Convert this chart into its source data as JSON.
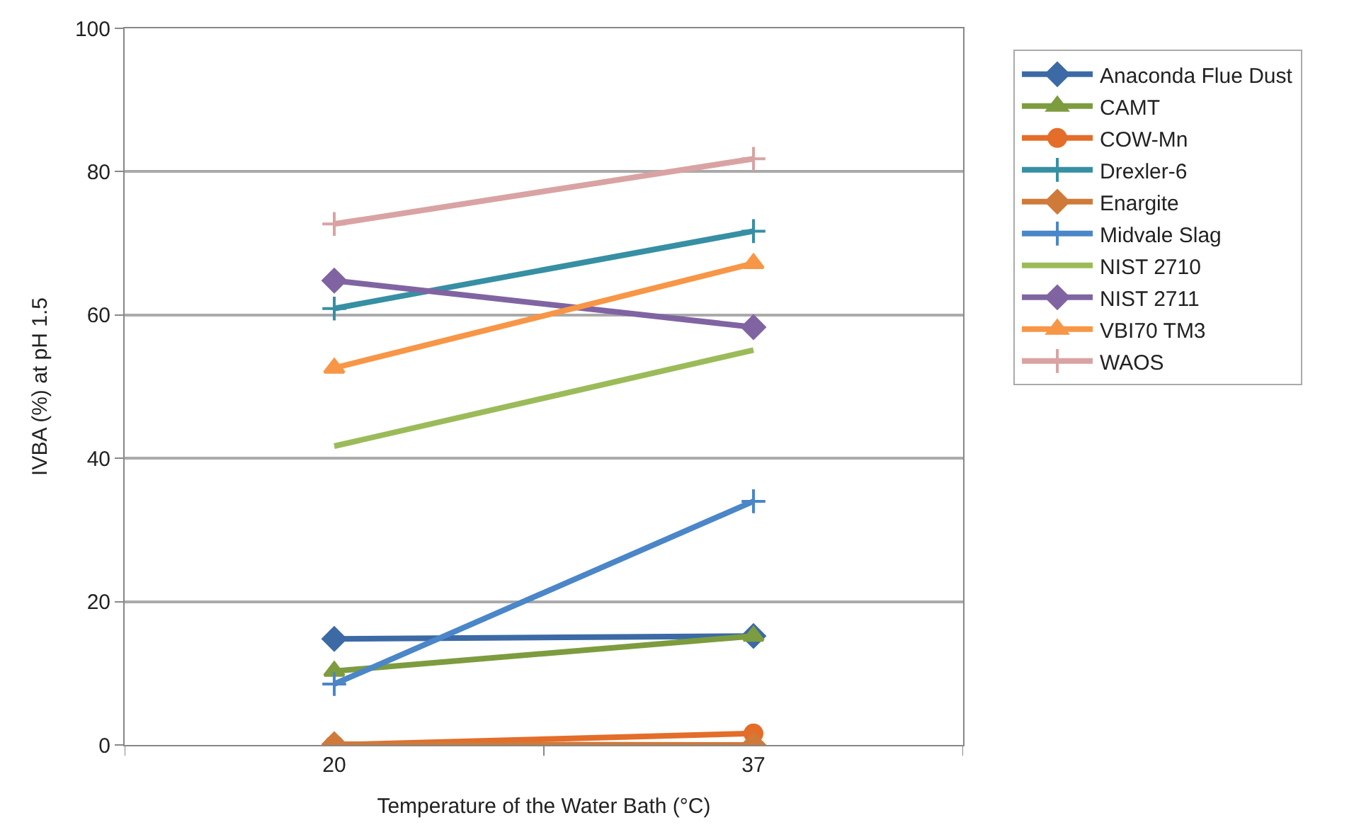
{
  "chart_data": {
    "type": "line",
    "xlabel": "Temperature of the Water Bath (°C)",
    "ylabel": "IVBA (%) at pH 1.5",
    "categories": [
      "20",
      "37"
    ],
    "ylim": [
      0,
      100
    ],
    "yticks": [
      0,
      20,
      40,
      60,
      80,
      100
    ],
    "grid": "y",
    "legend": "right",
    "line_style": "solid",
    "series": [
      {
        "name": "Anaconda Flue Dust",
        "color": "#3c6aa5",
        "marker": "diamond",
        "values": [
          14.8,
          15.2
        ]
      },
      {
        "name": "CAMT",
        "color": "#7d9c3f",
        "marker": "triangle",
        "values": [
          10.3,
          15.2
        ]
      },
      {
        "name": "COW-Mn",
        "color": "#e46d2a",
        "marker": "circle",
        "values": [
          0,
          1.6
        ]
      },
      {
        "name": "Drexler-6",
        "color": "#378fa3",
        "marker": "cross",
        "values": [
          60.9,
          71.7
        ]
      },
      {
        "name": "Enargite",
        "color": "#d07a3a",
        "marker": "diamond",
        "values": [
          0.1,
          0
        ]
      },
      {
        "name": "Midvale Slag",
        "color": "#4a86c8",
        "marker": "cross",
        "values": [
          8.5,
          34
        ]
      },
      {
        "name": "NIST 2710",
        "color": "#9bbb59",
        "marker": "none",
        "values": [
          41.7,
          55.1
        ]
      },
      {
        "name": "NIST 2711",
        "color": "#8064a2",
        "marker": "diamond",
        "values": [
          64.8,
          58.3
        ]
      },
      {
        "name": "VBI70 TM3",
        "color": "#f79646",
        "marker": "triangle",
        "values": [
          52.6,
          67.2
        ]
      },
      {
        "name": "WAOS",
        "color": "#d9a3a3",
        "marker": "cross",
        "values": [
          72.7,
          81.8
        ]
      }
    ]
  }
}
